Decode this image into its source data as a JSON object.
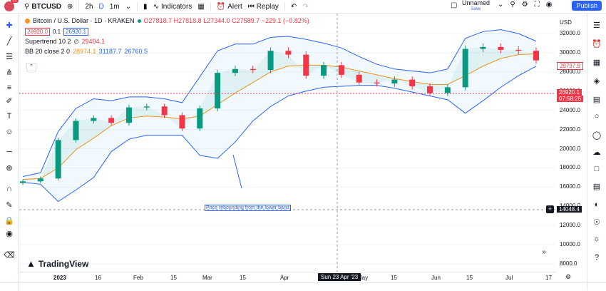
{
  "topbar": {
    "avatar_badge": "12",
    "symbol": "BTCUSD",
    "intervals": [
      "2h",
      "D",
      "1m"
    ],
    "active_interval": "D",
    "indicators_label": "Indicators",
    "alert_label": "Alert",
    "replay_label": "Replay",
    "layout_name": "Unnamed",
    "layout_status": "Save",
    "publish_label": "Publish"
  },
  "legend": {
    "title": "Bitcoin / U.S. Dollar · 1D · KRAKEN",
    "ohlc": "O27818.7 H27818.8 L27344.0 C27589.7 −229.1 (−0.82%)",
    "bid": "26920.0",
    "spread": "0.1",
    "ask": "26920.1",
    "supertrend_label": "Supertrend 10 2",
    "supertrend_value": "29494.1",
    "bb_label": "BB 20 close 2 0",
    "bb_basis": "28974.1",
    "bb_upper": "31187.7",
    "bb_lower": "26760.5",
    "colors": {
      "up": "#089981",
      "down": "#f23645",
      "supertrend": "#f23645",
      "bb_basis": "#f7931a",
      "bb_band": "#2962ff"
    }
  },
  "annotation": "Price rebounding from the lower band",
  "yaxis": {
    "currency": "USD",
    "ticks": [
      "32000.0",
      "30000.0",
      "28000.0",
      "26000.0",
      "24000.0",
      "22000.0",
      "20000.0",
      "18000.0",
      "16000.0",
      "14000.0",
      "12000.0",
      "10000.0",
      "8000.0"
    ],
    "supertrend_tag": "29797.9",
    "last_price_tag": "26920.1",
    "countdown_tag": "07:58:25",
    "crosshair_tag": "14048.4"
  },
  "xaxis": {
    "ticks": [
      "2023",
      "16",
      "Feb",
      "15",
      "Mar",
      "15",
      "Apr",
      "May",
      "15",
      "Jun",
      "15",
      "Jul",
      "17"
    ],
    "crosshair_date": "Sun 23 Apr '23"
  },
  "branding": "TradingView",
  "chart_data": {
    "type": "line",
    "x": [
      "2023-01-01",
      "2023-01-08",
      "2023-01-15",
      "2023-01-22",
      "2023-01-29",
      "2023-02-05",
      "2023-02-12",
      "2023-02-19",
      "2023-02-26",
      "2023-03-05",
      "2023-03-12",
      "2023-03-19",
      "2023-03-26",
      "2023-04-02",
      "2023-04-09",
      "2023-04-16",
      "2023-04-23",
      "2023-04-30",
      "2023-05-07",
      "2023-05-14",
      "2023-05-21",
      "2023-05-28",
      "2023-06-04",
      "2023-06-11",
      "2023-06-18",
      "2023-06-25",
      "2023-07-02",
      "2023-07-09",
      "2023-07-16",
      "2023-07-23"
    ],
    "series": [
      {
        "name": "BTCUSD",
        "values": [
          16600,
          16900,
          20900,
          22900,
          23200,
          22700,
          24300,
          24400,
          23500,
          22100,
          24200,
          27900,
          28300,
          28200,
          30200,
          29800,
          27600,
          28700,
          27700,
          26900,
          26800,
          27200,
          26500,
          25800,
          26400,
          30400,
          30600,
          30300,
          30200,
          29200
        ]
      },
      {
        "name": "BB upper",
        "values": [
          17100,
          17500,
          21800,
          24200,
          25200,
          25000,
          25400,
          25400,
          25200,
          24800,
          27500,
          30200,
          30900,
          30900,
          31600,
          31700,
          31400,
          31000,
          30500,
          29600,
          28800,
          28300,
          28100,
          27900,
          28300,
          31500,
          32200,
          32400,
          32000,
          31200
        ]
      },
      {
        "name": "BB basis",
        "values": [
          16800,
          16900,
          18000,
          19900,
          21100,
          22400,
          23200,
          23400,
          23300,
          23100,
          23400,
          24600,
          25800,
          26900,
          28000,
          28600,
          28700,
          28700,
          28500,
          28100,
          27700,
          27300,
          27000,
          26700,
          26700,
          27600,
          28600,
          29400,
          29800,
          29900
        ]
      },
      {
        "name": "BB lower",
        "values": [
          16500,
          16300,
          14500,
          15700,
          17000,
          19700,
          21000,
          21400,
          21400,
          21400,
          19300,
          19000,
          20700,
          22900,
          24400,
          25500,
          26000,
          26400,
          26500,
          26600,
          26600,
          26300,
          25900,
          25500,
          25100,
          23700,
          25000,
          26400,
          27600,
          28600
        ]
      }
    ],
    "ylim": [
      8000,
      33000
    ],
    "grid": true
  }
}
